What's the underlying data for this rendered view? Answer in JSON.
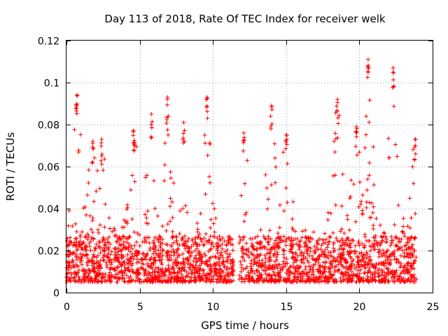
{
  "chart_data": {
    "type": "scatter",
    "title": "Day 113 of 2018, Rate Of TEC Index for receiver welk",
    "xlabel": "GPS time / hours",
    "ylabel": "ROTI / TECUs",
    "xlim": [
      0,
      25
    ],
    "ylim": [
      0,
      0.12
    ],
    "xticks": [
      0,
      5,
      10,
      15,
      20,
      25
    ],
    "xtick_labels": [
      "0",
      "5",
      "10",
      "15",
      "20",
      "25"
    ],
    "yticks": [
      0,
      0.02,
      0.04,
      0.06,
      0.08,
      0.1,
      0.12
    ],
    "ytick_labels": [
      "0",
      "0.02",
      "0.04",
      "0.06",
      "0.08",
      "0.1",
      "0.12"
    ],
    "grid": true,
    "marker": "plus",
    "color": "#ff0000",
    "x_range_of_data": [
      0,
      23.9
    ],
    "gap_hours": [
      11.4,
      11.8
    ],
    "series": [
      {
        "name": "ROTI",
        "note": "dense band ~0.005–0.03 across the day, plus elevated spikes listed below",
        "peaks": [
          {
            "x": 0.7,
            "y": 0.094
          },
          {
            "x": 1.8,
            "y": 0.072
          },
          {
            "x": 2.4,
            "y": 0.073
          },
          {
            "x": 4.6,
            "y": 0.077
          },
          {
            "x": 5.8,
            "y": 0.085
          },
          {
            "x": 6.9,
            "y": 0.093
          },
          {
            "x": 8.0,
            "y": 0.081
          },
          {
            "x": 9.6,
            "y": 0.093
          },
          {
            "x": 12.1,
            "y": 0.076
          },
          {
            "x": 14.0,
            "y": 0.089
          },
          {
            "x": 15.0,
            "y": 0.075
          },
          {
            "x": 18.5,
            "y": 0.092
          },
          {
            "x": 19.8,
            "y": 0.079
          },
          {
            "x": 20.6,
            "y": 0.111
          },
          {
            "x": 22.3,
            "y": 0.107
          },
          {
            "x": 23.8,
            "y": 0.073
          }
        ]
      }
    ]
  }
}
